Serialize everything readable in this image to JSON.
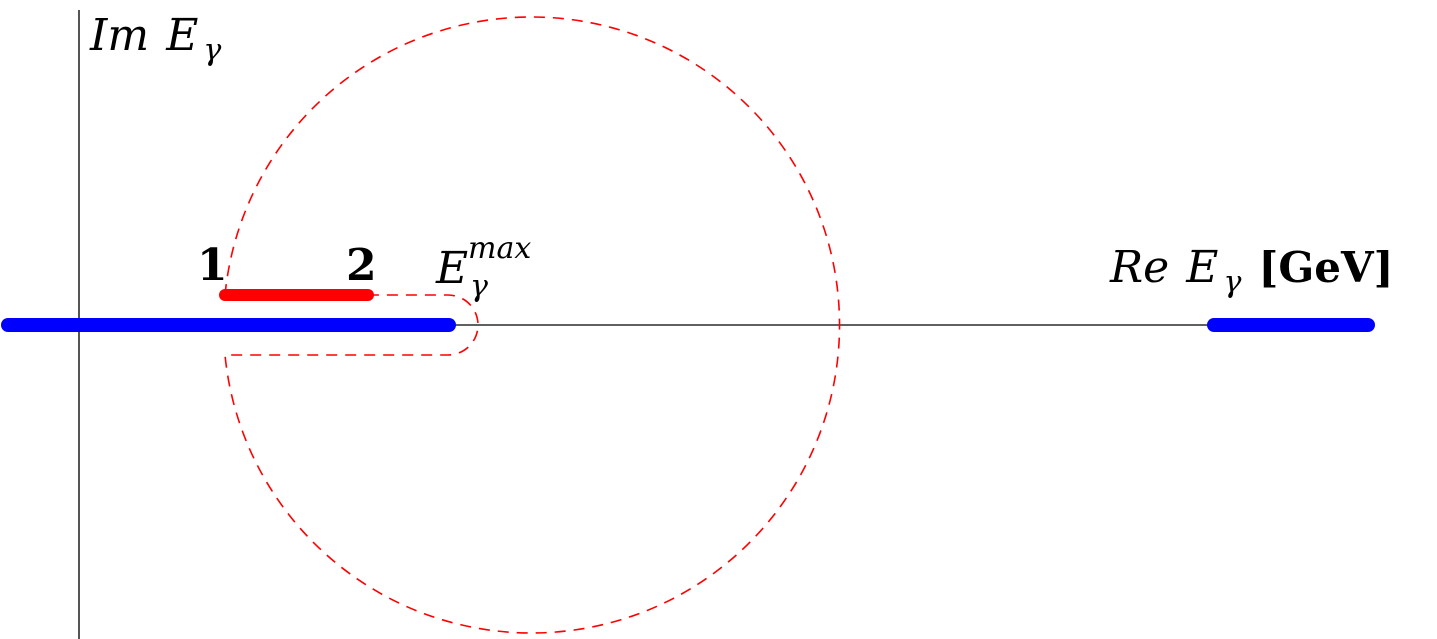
{
  "axes": {
    "imaginary_label": {
      "prefix": "Im",
      "symbol": "E",
      "subscript": "γ"
    },
    "real_label": {
      "prefix": "Re",
      "symbol": "E",
      "subscript": "γ",
      "unit": "[GeV]"
    }
  },
  "points": {
    "point_1": "1",
    "point_2": "2",
    "emax": {
      "symbol": "E",
      "superscript": "max",
      "subscript": "γ"
    }
  },
  "colors": {
    "cut": "#0000ff",
    "interval": "#ff0000",
    "contour": "#ff0000",
    "axis": "#000000"
  }
}
